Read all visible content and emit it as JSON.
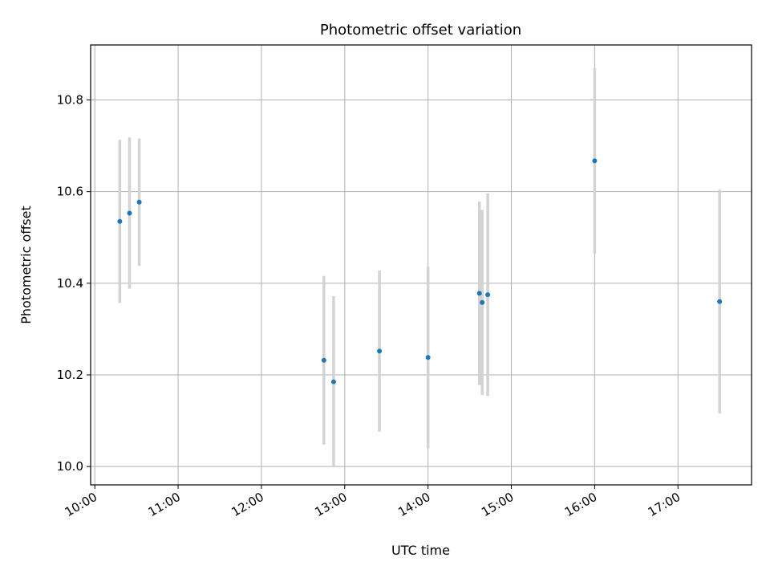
{
  "chart_data": {
    "type": "scatter",
    "title": "Photometric offset variation",
    "xlabel": "UTC time",
    "ylabel": "Photometric offset",
    "xlim": [
      "09:57",
      "17:53"
    ],
    "ylim": [
      9.96,
      10.92
    ],
    "xticks": [
      "10:00",
      "11:00",
      "12:00",
      "13:00",
      "14:00",
      "15:00",
      "16:00",
      "17:00"
    ],
    "yticks": [
      10.0,
      10.2,
      10.4,
      10.6,
      10.8
    ],
    "ytick_labels": [
      "10.0",
      "10.2",
      "10.4",
      "10.6",
      "10.8"
    ],
    "grid": true,
    "point_color": "#1f77b4",
    "errorbar_color": "#d3d3d3",
    "points": [
      {
        "x": "10:18",
        "y": 10.535,
        "err": 0.178
      },
      {
        "x": "10:25",
        "y": 10.553,
        "err": 0.165
      },
      {
        "x": "10:32",
        "y": 10.577,
        "err": 0.139
      },
      {
        "x": "12:45",
        "y": 10.232,
        "err": 0.184
      },
      {
        "x": "12:52",
        "y": 10.185,
        "err": 0.187
      },
      {
        "x": "13:25",
        "y": 10.252,
        "err": 0.176
      },
      {
        "x": "14:00",
        "y": 10.238,
        "err": 0.198
      },
      {
        "x": "14:37",
        "y": 10.378,
        "err": 0.2
      },
      {
        "x": "14:39",
        "y": 10.358,
        "err": 0.202
      },
      {
        "x": "14:43",
        "y": 10.375,
        "err": 0.221
      },
      {
        "x": "16:00",
        "y": 10.667,
        "err": 0.203
      },
      {
        "x": "17:30",
        "y": 10.36,
        "err": 0.244
      }
    ]
  }
}
